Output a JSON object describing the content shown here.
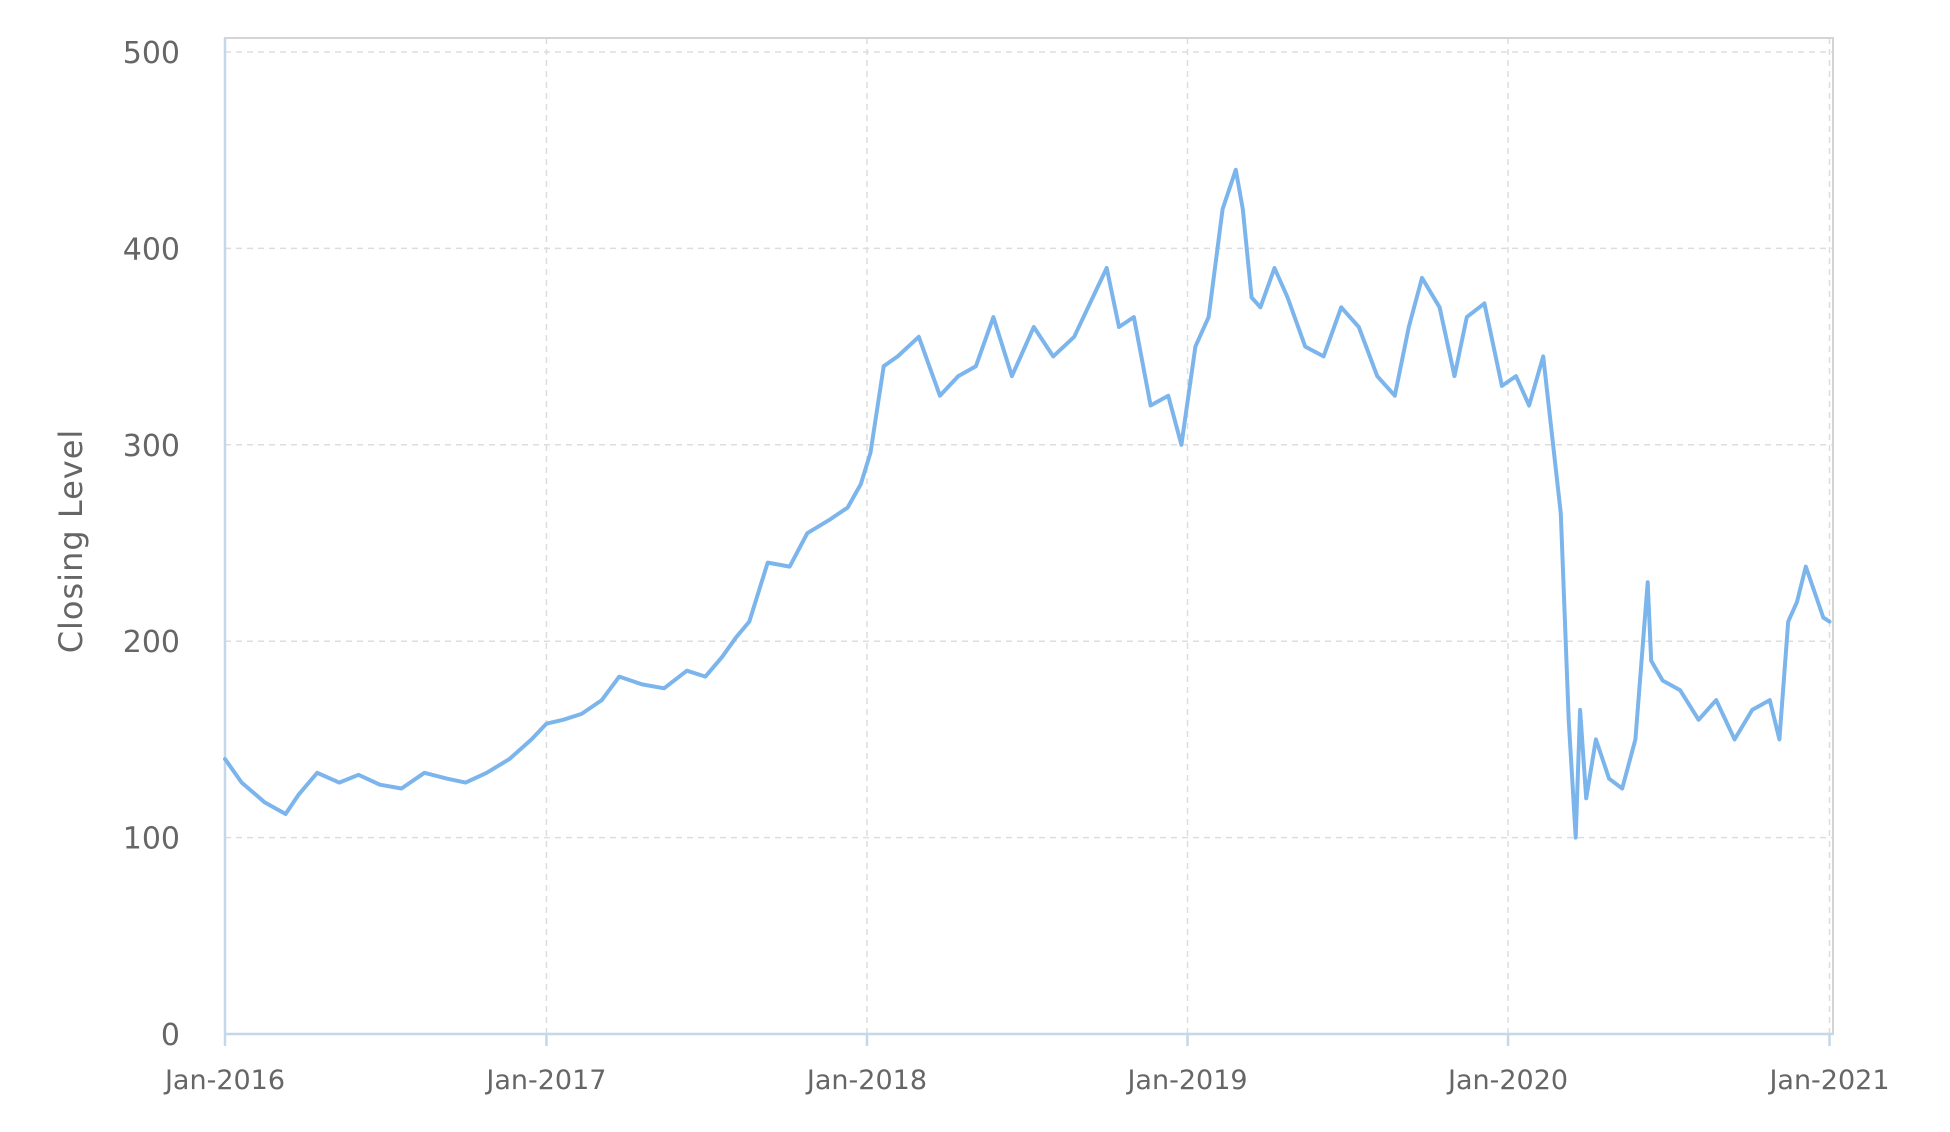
{
  "chart_data": {
    "type": "line",
    "title": "",
    "xlabel": "",
    "ylabel": "Closing Level",
    "ylim": [
      0,
      500
    ],
    "xlim": [
      "2016-01-01",
      "2021-01-05"
    ],
    "yticks": [
      "0",
      "100",
      "200",
      "300",
      "400",
      "500"
    ],
    "xticks": [
      {
        "date": "2016-01-01",
        "label": "Jan-2016"
      },
      {
        "date": "2017-01-01",
        "label": "Jan-2017"
      },
      {
        "date": "2018-01-01",
        "label": "Jan-2018"
      },
      {
        "date": "2019-01-01",
        "label": "Jan-2019"
      },
      {
        "date": "2020-01-01",
        "label": "Jan-2020"
      },
      {
        "date": "2021-01-01",
        "label": "Jan-2021"
      }
    ],
    "grid": true,
    "colors": {
      "line": "#7cb5ec",
      "axis": "#c5d8ea",
      "grid": "#dddddd",
      "text": "#666666"
    },
    "series": [
      {
        "x": [
          "2016-01-01",
          "2016-01-20",
          "2016-02-15",
          "2016-03-10",
          "2016-03-25",
          "2016-04-15",
          "2016-05-10",
          "2016-06-01",
          "2016-06-25",
          "2016-07-20",
          "2016-08-15",
          "2016-09-10",
          "2016-10-01",
          "2016-10-25",
          "2016-11-20",
          "2016-12-15",
          "2017-01-01",
          "2017-01-20",
          "2017-02-10",
          "2017-03-05",
          "2017-03-25",
          "2017-04-20",
          "2017-05-15",
          "2017-06-10",
          "2017-07-01",
          "2017-07-20",
          "2017-08-05",
          "2017-08-20",
          "2017-09-10",
          "2017-10-05",
          "2017-10-25",
          "2017-11-20",
          "2017-12-10",
          "2017-12-25",
          "2018-01-05",
          "2018-01-20",
          "2018-02-05",
          "2018-03-01",
          "2018-03-25",
          "2018-04-15",
          "2018-05-05",
          "2018-05-25",
          "2018-06-15",
          "2018-07-10",
          "2018-08-01",
          "2018-08-25",
          "2018-09-15",
          "2018-10-01",
          "2018-10-15",
          "2018-11-01",
          "2018-11-20",
          "2018-12-10",
          "2018-12-25",
          "2019-01-10",
          "2019-01-25",
          "2019-02-10",
          "2019-02-25",
          "2019-03-05",
          "2019-03-15",
          "2019-03-25",
          "2019-04-10",
          "2019-04-25",
          "2019-05-15",
          "2019-06-05",
          "2019-06-25",
          "2019-07-15",
          "2019-08-05",
          "2019-08-25",
          "2019-09-10",
          "2019-09-25",
          "2019-10-15",
          "2019-11-01",
          "2019-11-15",
          "2019-12-05",
          "2019-12-25",
          "2020-01-10",
          "2020-01-25",
          "2020-02-10",
          "2020-02-20",
          "2020-03-01",
          "2020-03-10",
          "2020-03-18",
          "2020-03-23",
          "2020-03-30",
          "2020-04-10",
          "2020-04-25",
          "2020-05-10",
          "2020-05-25",
          "2020-06-08",
          "2020-06-12",
          "2020-06-25",
          "2020-07-15",
          "2020-08-05",
          "2020-08-25",
          "2020-09-15",
          "2020-10-05",
          "2020-10-25",
          "2020-11-05",
          "2020-11-15",
          "2020-11-25",
          "2020-12-05",
          "2020-12-15",
          "2020-12-25",
          "2021-01-01"
        ],
        "y": [
          140,
          128,
          118,
          112,
          122,
          133,
          128,
          132,
          127,
          125,
          133,
          130,
          128,
          133,
          140,
          150,
          158,
          160,
          163,
          170,
          182,
          178,
          176,
          185,
          182,
          192,
          202,
          210,
          240,
          238,
          255,
          262,
          268,
          280,
          296,
          340,
          345,
          355,
          325,
          335,
          340,
          365,
          335,
          360,
          345,
          355,
          375,
          390,
          360,
          365,
          320,
          325,
          300,
          350,
          365,
          420,
          440,
          420,
          375,
          370,
          390,
          375,
          350,
          345,
          370,
          360,
          335,
          325,
          360,
          385,
          370,
          335,
          365,
          372,
          330,
          335,
          320,
          345,
          305,
          265,
          160,
          100,
          165,
          120,
          150,
          130,
          125,
          150,
          230,
          190,
          180,
          175,
          160,
          170,
          150,
          165,
          170,
          150,
          210,
          220,
          238,
          225,
          212,
          210
        ]
      }
    ]
  }
}
